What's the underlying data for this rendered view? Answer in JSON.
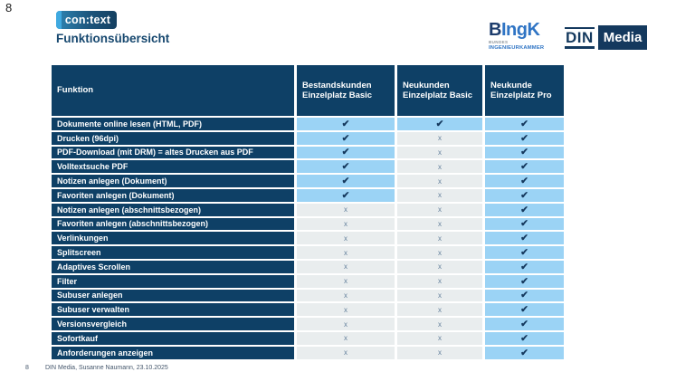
{
  "slide": {
    "corner_page_number": "8",
    "title": "Funktionsübersicht",
    "footer": {
      "page_number": "8",
      "text": "DIN Media, Susanne Naumann, 23.10.2025"
    }
  },
  "logos": {
    "context": {
      "text": "con:text"
    },
    "bingk": {
      "b": "B",
      "rest": "IngK",
      "line1": "BUNDES",
      "line2": "INGENIEURKAMMER"
    },
    "din_media": {
      "din": "DIN",
      "media": "Media"
    }
  },
  "colors": {
    "header_navy": "#0e4066",
    "cell_blue": "#9bd3f5",
    "cell_gray": "#e9edee",
    "title_blue": "#17486f",
    "bingk_blue": "#2f74c4",
    "din_navy": "#14395e"
  },
  "table": {
    "columns": [
      "Funktion",
      "Bestandskunden Einzelplatz Basic",
      "Neukunden Einzelplatz Basic",
      "Neukunde Einzelplatz Pro"
    ],
    "marks": {
      "yes": "✔",
      "no": "x"
    },
    "rows": [
      {
        "label": "Dokumente online lesen (HTML, PDF)",
        "values": [
          "yes",
          "yes",
          "yes"
        ]
      },
      {
        "label": "Drucken (96dpi)",
        "values": [
          "yes",
          "no",
          "yes"
        ]
      },
      {
        "label": "PDF-Download (mit DRM) = altes Drucken aus PDF",
        "values": [
          "yes",
          "no",
          "yes"
        ]
      },
      {
        "label": "Volltextsuche PDF",
        "values": [
          "yes",
          "no",
          "yes"
        ]
      },
      {
        "label": "Notizen anlegen (Dokument)",
        "values": [
          "yes",
          "no",
          "yes"
        ]
      },
      {
        "label": "Favoriten anlegen (Dokument)",
        "values": [
          "yes",
          "no",
          "yes"
        ]
      },
      {
        "label": "Notizen anlegen (abschnittsbezogen)",
        "values": [
          "no",
          "no",
          "yes"
        ]
      },
      {
        "label": "Favoriten anlegen (abschnittsbezogen)",
        "values": [
          "no",
          "no",
          "yes"
        ]
      },
      {
        "label": "Verlinkungen",
        "values": [
          "no",
          "no",
          "yes"
        ]
      },
      {
        "label": "Splitscreen",
        "values": [
          "no",
          "no",
          "yes"
        ]
      },
      {
        "label": "Adaptives Scrollen",
        "values": [
          "no",
          "no",
          "yes"
        ]
      },
      {
        "label": "Filter",
        "values": [
          "no",
          "no",
          "yes"
        ]
      },
      {
        "label": "Subuser anlegen",
        "values": [
          "no",
          "no",
          "yes"
        ]
      },
      {
        "label": "Subuser verwalten",
        "values": [
          "no",
          "no",
          "yes"
        ]
      },
      {
        "label": "Versionsvergleich",
        "values": [
          "no",
          "no",
          "yes"
        ]
      },
      {
        "label": "Sofortkauf",
        "values": [
          "no",
          "no",
          "yes"
        ]
      },
      {
        "label": "Anforderungen anzeigen",
        "values": [
          "no",
          "no",
          "yes"
        ]
      }
    ]
  }
}
